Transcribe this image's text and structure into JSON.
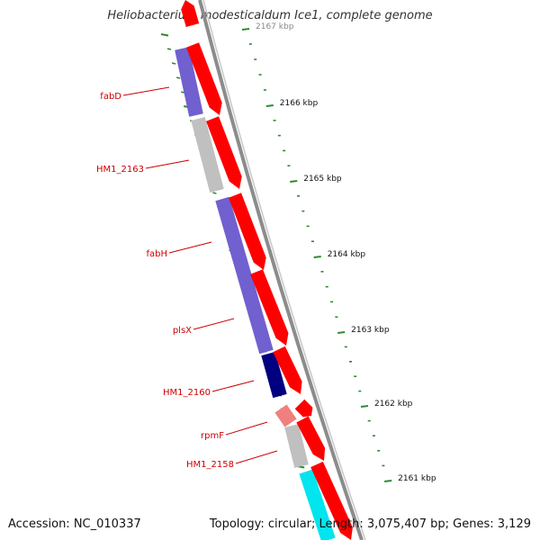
{
  "title": "Heliobacterium modesticaldum Ice1, complete genome",
  "footer": {
    "accession": "Accession: NC_010337",
    "summary": "Topology: circular; Length: 3,075,407 bp; Genes: 3,129"
  },
  "colors": {
    "backbone": "#8c8c8c",
    "forward": "#ff0000",
    "forward_light": "#f08080",
    "tick": "#2e8b2e",
    "label": "#cc0000",
    "purple": "#7060d0",
    "gray": "#c0c0c0",
    "navy": "#000080",
    "cyan": "#00e5ee"
  },
  "scale_labels": [
    {
      "text": "2167 kbp",
      "kbp": 2167
    },
    {
      "text": "2166 kbp",
      "kbp": 2166
    },
    {
      "text": "2165 kbp",
      "kbp": 2165
    },
    {
      "text": "2164 kbp",
      "kbp": 2164
    },
    {
      "text": "2163 kbp",
      "kbp": 2163
    },
    {
      "text": "2162 kbp",
      "kbp": 2162
    },
    {
      "text": "2161 kbp",
      "kbp": 2161
    }
  ],
  "gene_labels": [
    {
      "text": "fabD"
    },
    {
      "text": "HM1_2163"
    },
    {
      "text": "fabH"
    },
    {
      "text": "plsX"
    },
    {
      "text": "HM1_2160"
    },
    {
      "text": "rpmF"
    },
    {
      "text": "HM1_2158"
    }
  ],
  "features": [
    {
      "name": "fabD",
      "color": "purple"
    },
    {
      "name": "HM1_2163",
      "color": "gray"
    },
    {
      "name": "fabH",
      "color": "purple"
    },
    {
      "name": "plsX",
      "color": "purple"
    },
    {
      "name": "HM1_2160",
      "color": "navy"
    },
    {
      "name": "rpmF",
      "color": "forward_light"
    },
    {
      "name": "HM1_2158",
      "color": "gray"
    },
    {
      "name": "next-gene",
      "color": "cyan"
    }
  ]
}
